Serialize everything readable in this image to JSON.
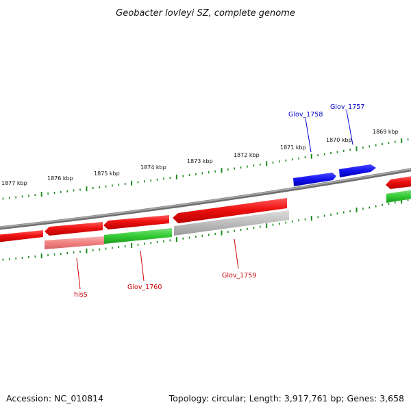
{
  "title": "Geobacter lovleyi SZ, complete genome",
  "footer": {
    "accession": "Accession: NC_010814",
    "topology": "Topology: circular; Length: 3,917,761 bp; Genes: 3,658"
  },
  "colors": {
    "backbone": "#8c8c8c",
    "tick": "#1a8a1a",
    "forward_gene": "#ee1111",
    "reverse_gene_red": "#ee1111",
    "pink": "#f08a8a",
    "green": "#33cc33",
    "gray": "#bdbdbd",
    "blue": "#1111ee",
    "red_label": "#cc0000",
    "blue_label": "#0000cc"
  },
  "scale_labels": [
    "1877 kbp",
    "1876 kbp",
    "1875 kbp",
    "1874 kbp",
    "1873 kbp",
    "1872 kbp",
    "1871 kbp",
    "1870 kbp",
    "1869 kbp"
  ],
  "gene_labels": {
    "glov_1758": "Glov_1758",
    "glov_1757": "Glov_1757",
    "hisS": "hisS",
    "glov_1760": "Glov_1760",
    "glov_1759": "Glov_1759"
  }
}
